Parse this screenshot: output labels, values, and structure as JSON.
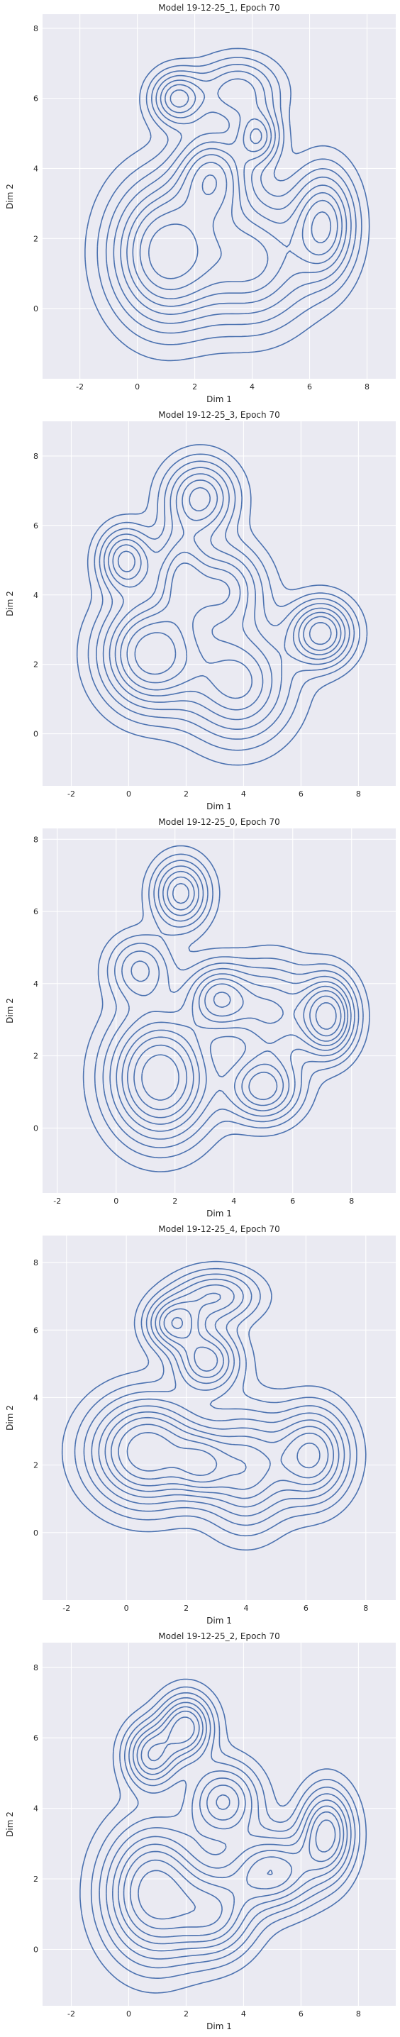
{
  "chart_data": [
    {
      "type": "contour",
      "title": "Model 19-12-25_1, Epoch 70",
      "xlabel": "Dim 1",
      "ylabel": "Dim 2",
      "xlim": [
        -3.3,
        9.0
      ],
      "ylim": [
        -2.0,
        8.4
      ],
      "xticks": [
        "-2",
        "0",
        "2",
        "4",
        "6",
        "8"
      ],
      "yticks": [
        "0",
        "2",
        "4",
        "6",
        "8"
      ],
      "grid": true,
      "line_color": "#4c72b0",
      "centers": [
        {
          "x": 1.0,
          "y": 1.6,
          "sx": 1.2,
          "sy": 1.3,
          "w": 1.2
        },
        {
          "x": 1.4,
          "y": 6.0,
          "sx": 0.6,
          "sy": 0.5,
          "w": 0.8
        },
        {
          "x": 2.6,
          "y": 3.8,
          "sx": 0.8,
          "sy": 0.8,
          "w": 0.9
        },
        {
          "x": 4.2,
          "y": 4.9,
          "sx": 0.5,
          "sy": 0.5,
          "w": 0.7
        },
        {
          "x": 6.5,
          "y": 2.4,
          "sx": 0.7,
          "sy": 1.0,
          "w": 0.9
        },
        {
          "x": 4.0,
          "y": 1.4,
          "sx": 1.3,
          "sy": 1.2,
          "w": 0.8
        },
        {
          "x": 3.5,
          "y": 6.2,
          "sx": 0.9,
          "sy": 0.6,
          "w": 0.6
        }
      ]
    },
    {
      "type": "contour",
      "title": "Model 19-12-25_3, Epoch 70",
      "xlabel": "Dim 1",
      "ylabel": "Dim 2",
      "xlim": [
        -3.0,
        9.3
      ],
      "ylim": [
        -1.5,
        9.0
      ],
      "xticks": [
        "-2",
        "0",
        "2",
        "4",
        "6",
        "8"
      ],
      "yticks": [
        "0",
        "2",
        "4",
        "6",
        "8"
      ],
      "grid": true,
      "line_color": "#4c72b0",
      "centers": [
        {
          "x": 0.8,
          "y": 2.3,
          "sx": 1.1,
          "sy": 1.0,
          "w": 1.2
        },
        {
          "x": -0.1,
          "y": 5.0,
          "sx": 0.6,
          "sy": 0.6,
          "w": 0.8
        },
        {
          "x": 2.5,
          "y": 6.8,
          "sx": 0.8,
          "sy": 0.7,
          "w": 0.8
        },
        {
          "x": 3.3,
          "y": 4.2,
          "sx": 0.9,
          "sy": 0.8,
          "w": 0.7
        },
        {
          "x": 6.7,
          "y": 2.9,
          "sx": 0.7,
          "sy": 0.6,
          "w": 1.0
        },
        {
          "x": 3.8,
          "y": 1.5,
          "sx": 1.2,
          "sy": 1.1,
          "w": 0.8
        },
        {
          "x": 1.8,
          "y": 4.6,
          "sx": 0.6,
          "sy": 0.9,
          "w": 0.6
        }
      ]
    },
    {
      "type": "contour",
      "title": "Model 19-12-25_0, Epoch 70",
      "xlabel": "Dim 1",
      "ylabel": "Dim 2",
      "xlim": [
        -2.5,
        9.5
      ],
      "ylim": [
        -1.8,
        8.3
      ],
      "xticks": [
        "-2",
        "0",
        "2",
        "4",
        "6",
        "8"
      ],
      "yticks": [
        "0",
        "2",
        "4",
        "6",
        "8"
      ],
      "grid": true,
      "line_color": "#4c72b0",
      "centers": [
        {
          "x": 1.5,
          "y": 1.4,
          "sx": 1.1,
          "sy": 1.1,
          "w": 1.2
        },
        {
          "x": 2.2,
          "y": 6.5,
          "sx": 0.6,
          "sy": 0.6,
          "w": 0.8
        },
        {
          "x": 3.5,
          "y": 3.6,
          "sx": 0.7,
          "sy": 0.6,
          "w": 0.8
        },
        {
          "x": 7.2,
          "y": 3.1,
          "sx": 0.6,
          "sy": 0.7,
          "w": 1.1
        },
        {
          "x": 5.0,
          "y": 1.1,
          "sx": 0.8,
          "sy": 0.6,
          "w": 0.8
        },
        {
          "x": 5.3,
          "y": 3.2,
          "sx": 0.9,
          "sy": 0.9,
          "w": 0.6
        },
        {
          "x": 0.8,
          "y": 4.4,
          "sx": 0.7,
          "sy": 0.6,
          "w": 0.5
        }
      ]
    },
    {
      "type": "contour",
      "title": "Model 19-12-25_4, Epoch 70",
      "xlabel": "Dim 1",
      "ylabel": "Dim 2",
      "xlim": [
        -2.8,
        9.0
      ],
      "ylim": [
        -2.0,
        8.8
      ],
      "xticks": [
        "-2",
        "0",
        "2",
        "4",
        "6",
        "8"
      ],
      "yticks": [
        "0",
        "2",
        "4",
        "6",
        "8"
      ],
      "grid": true,
      "line_color": "#4c72b0",
      "centers": [
        {
          "x": 0.7,
          "y": 2.4,
          "sx": 1.2,
          "sy": 1.0,
          "w": 1.2
        },
        {
          "x": 1.6,
          "y": 6.2,
          "sx": 0.6,
          "sy": 0.5,
          "w": 0.8
        },
        {
          "x": 2.7,
          "y": 5.1,
          "sx": 0.7,
          "sy": 0.6,
          "w": 0.8
        },
        {
          "x": 3.0,
          "y": 7.0,
          "sx": 0.9,
          "sy": 0.5,
          "w": 0.6
        },
        {
          "x": 6.2,
          "y": 2.3,
          "sx": 0.8,
          "sy": 0.9,
          "w": 0.9
        },
        {
          "x": 4.0,
          "y": 1.9,
          "sx": 0.9,
          "sy": 1.1,
          "w": 0.8
        },
        {
          "x": 2.5,
          "y": 2.0,
          "sx": 0.6,
          "sy": 0.6,
          "w": 0.6
        }
      ]
    },
    {
      "type": "contour",
      "title": "Model 19-12-25_2, Epoch 70",
      "xlabel": "Dim 1",
      "ylabel": "Dim 2",
      "xlim": [
        -3.0,
        9.3
      ],
      "ylim": [
        -1.6,
        8.7
      ],
      "xticks": [
        "-2",
        "0",
        "2",
        "4",
        "6",
        "8"
      ],
      "yticks": [
        "0",
        "2",
        "4",
        "6",
        "8"
      ],
      "grid": true,
      "line_color": "#4c72b0",
      "centers": [
        {
          "x": 0.9,
          "y": 1.6,
          "sx": 1.1,
          "sy": 1.2,
          "w": 1.1
        },
        {
          "x": 0.8,
          "y": 5.5,
          "sx": 0.6,
          "sy": 0.6,
          "w": 0.8
        },
        {
          "x": 2.0,
          "y": 6.3,
          "sx": 0.6,
          "sy": 0.6,
          "w": 0.9
        },
        {
          "x": 3.3,
          "y": 4.2,
          "sx": 0.8,
          "sy": 0.7,
          "w": 0.7
        },
        {
          "x": 5.0,
          "y": 2.2,
          "sx": 1.0,
          "sy": 0.7,
          "w": 0.8
        },
        {
          "x": 6.9,
          "y": 3.3,
          "sx": 0.6,
          "sy": 0.8,
          "w": 0.9
        },
        {
          "x": 3.0,
          "y": 1.0,
          "sx": 0.9,
          "sy": 0.8,
          "w": 0.7
        }
      ]
    }
  ]
}
